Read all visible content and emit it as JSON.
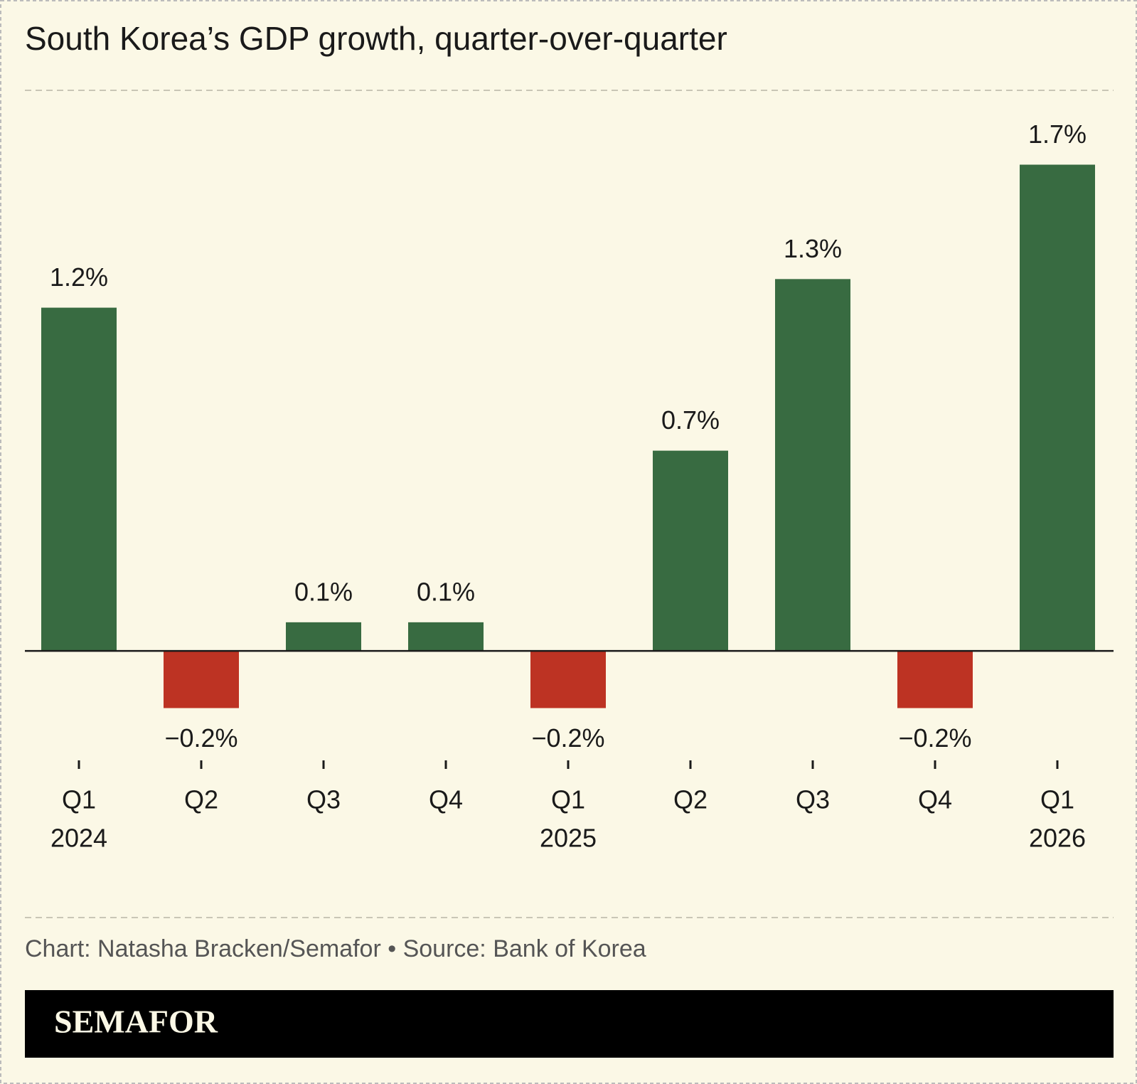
{
  "chart_data": {
    "type": "bar",
    "title": "South Korea’s GDP growth, quarter-over-quarter",
    "categories": [
      "Q1",
      "Q2",
      "Q3",
      "Q4",
      "Q1",
      "Q2",
      "Q3",
      "Q4",
      "Q1"
    ],
    "years": [
      "2024",
      null,
      null,
      null,
      "2025",
      null,
      null,
      null,
      "2026"
    ],
    "values": [
      1.2,
      -0.2,
      0.1,
      0.1,
      -0.2,
      0.7,
      1.3,
      -0.2,
      1.7
    ],
    "value_labels": [
      "1.2%",
      "−0.2%",
      "0.1%",
      "0.1%",
      "−0.2%",
      "0.7%",
      "1.3%",
      "−0.2%",
      "1.7%"
    ],
    "positive_color": "#386b41",
    "negative_color": "#bd3323",
    "ylim": [
      -0.2,
      1.7
    ],
    "source": "Chart: Natasha Bracken/Semafor • Source: Bank of Korea",
    "logo": "SEMAFOR"
  }
}
